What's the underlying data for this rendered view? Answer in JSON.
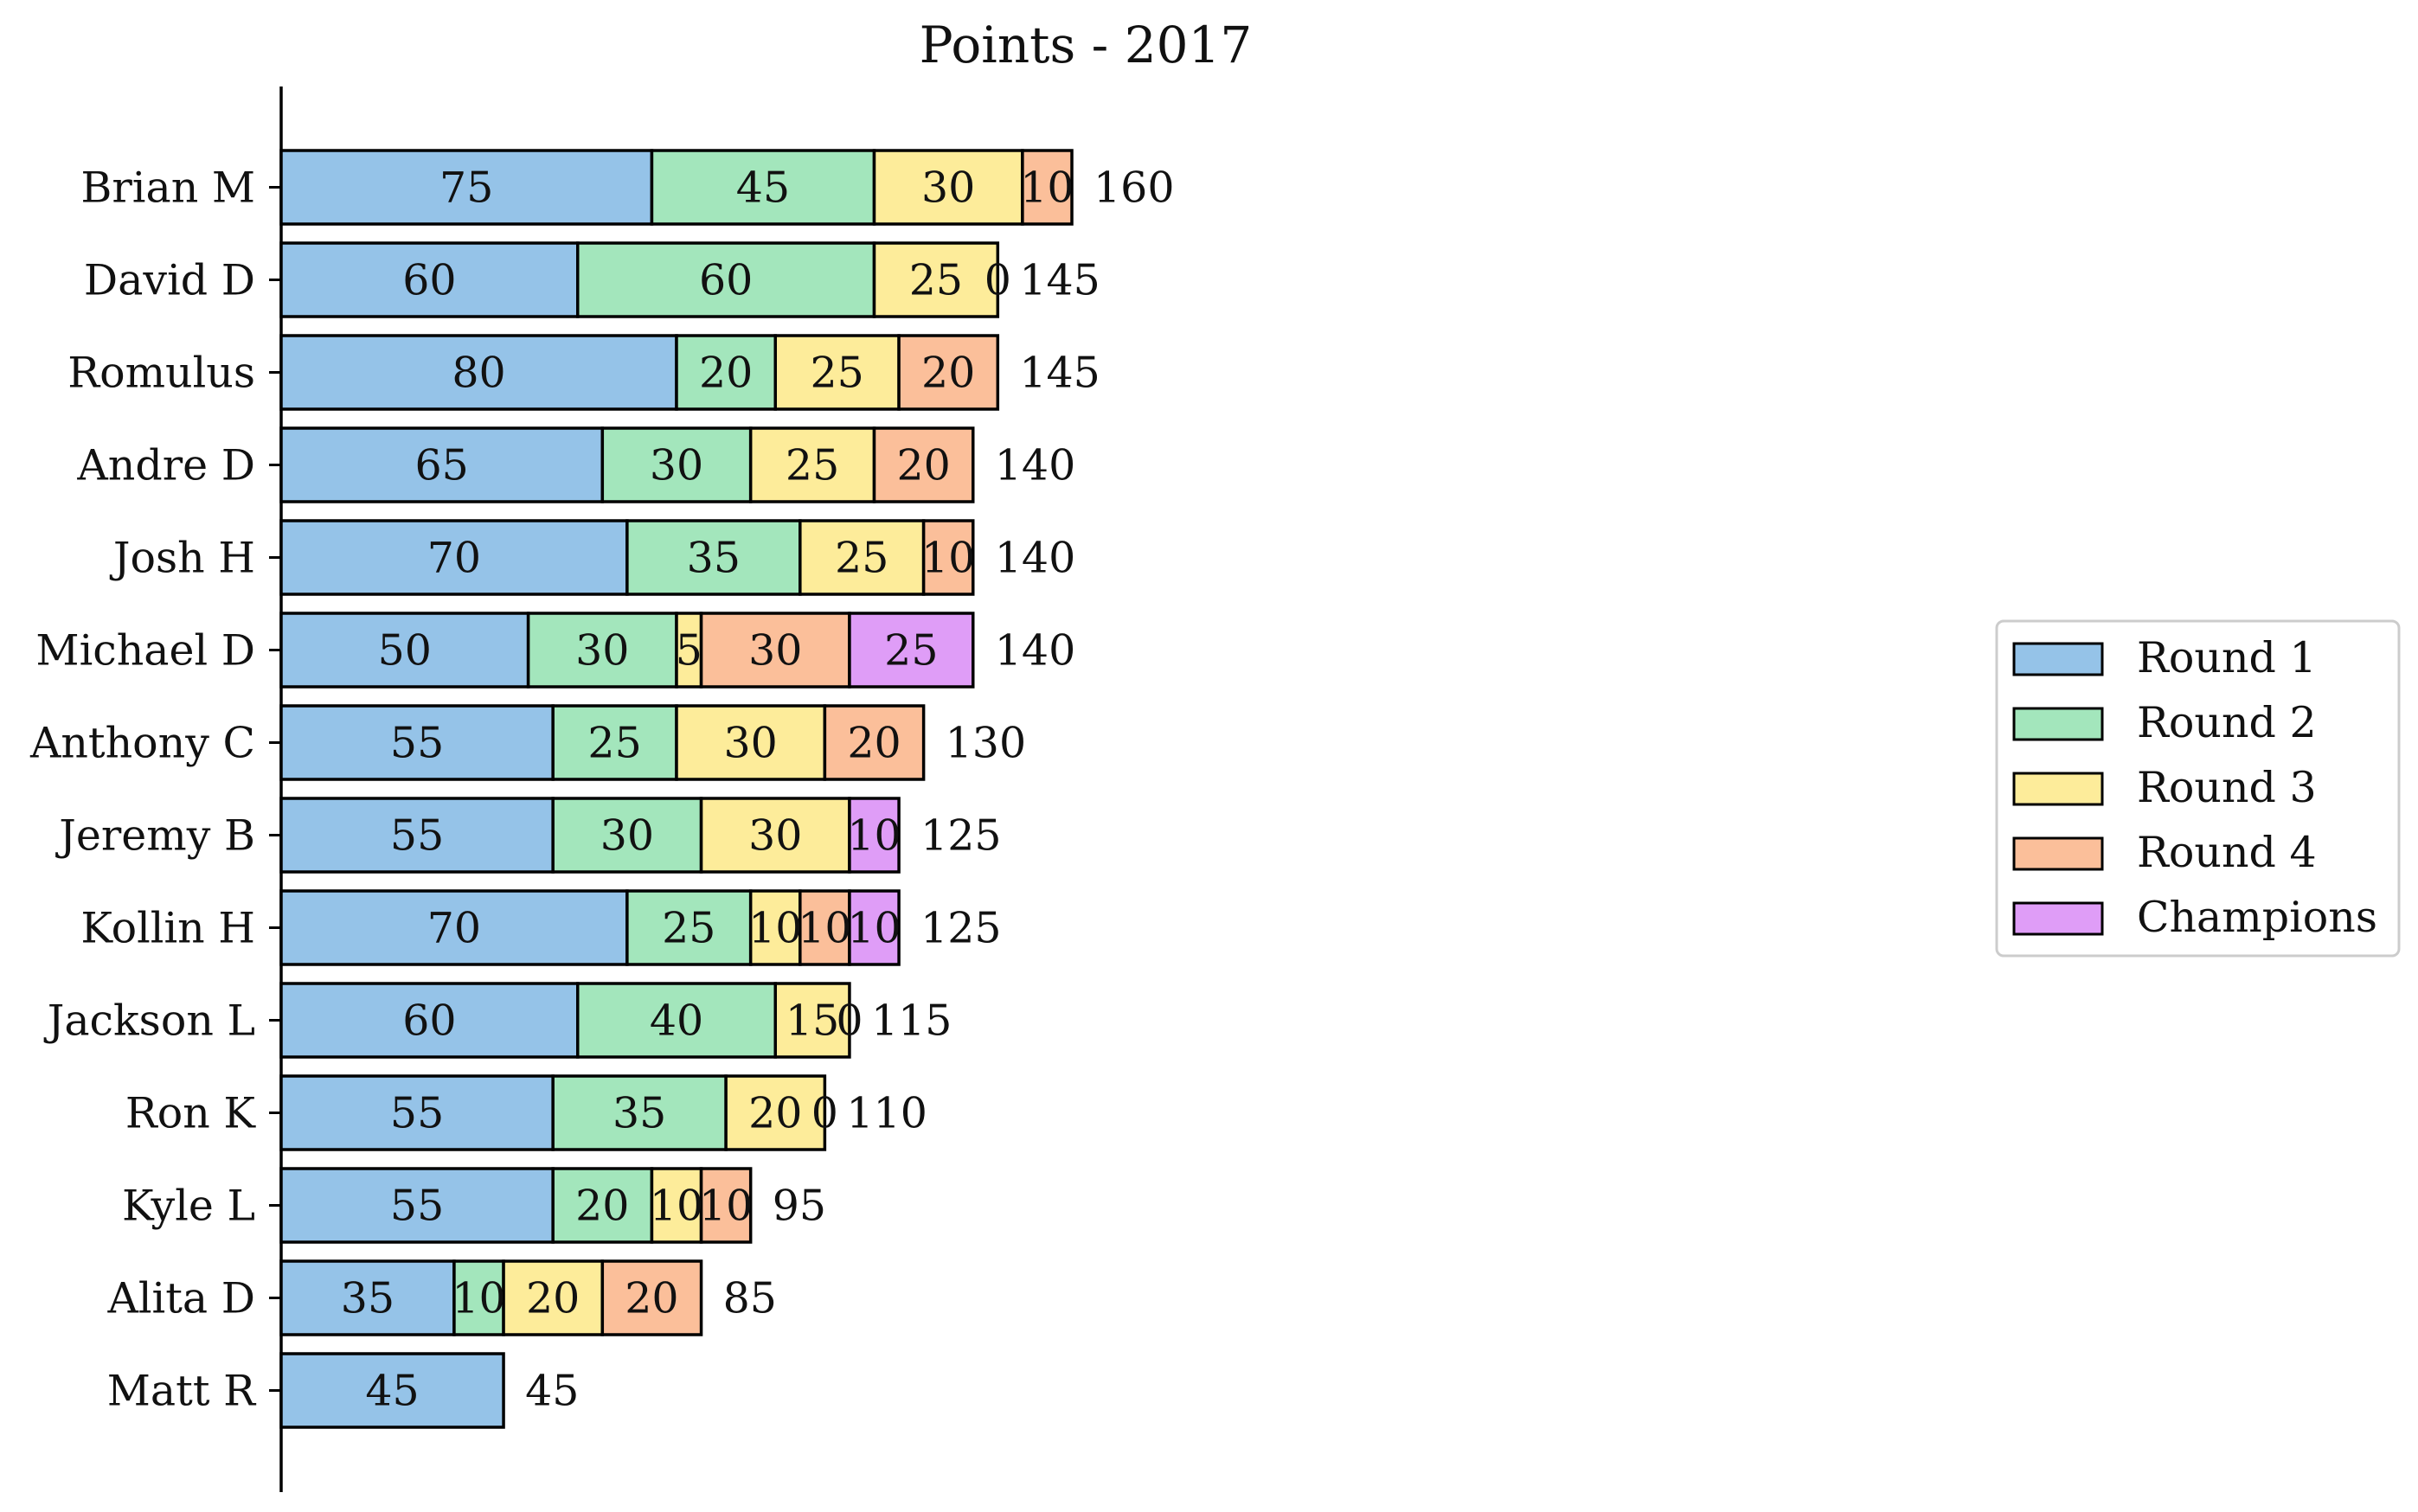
{
  "chart_data": {
    "type": "bar",
    "orientation": "horizontal",
    "stacked": true,
    "title": "Points - 2017",
    "xlabel": "",
    "ylabel": "",
    "grid": false,
    "legend_position": "center-right",
    "categories": [
      "Brian M",
      "David D",
      "Romulus",
      "Andre D",
      "Josh H",
      "Michael D",
      "Anthony C",
      "Jeremy B",
      "Kollin H",
      "Jackson L",
      "Ron K",
      "Kyle L",
      "Alita D",
      "Matt R"
    ],
    "series": [
      {
        "name": "Round 1",
        "color": "#95c3e8",
        "values": [
          75,
          60,
          80,
          65,
          70,
          50,
          55,
          55,
          70,
          60,
          55,
          55,
          35,
          45
        ]
      },
      {
        "name": "Round 2",
        "color": "#a3e6bc",
        "values": [
          45,
          60,
          20,
          30,
          35,
          30,
          25,
          30,
          25,
          40,
          35,
          20,
          10,
          0
        ]
      },
      {
        "name": "Round 3",
        "color": "#fdec9a",
        "values": [
          30,
          25,
          25,
          25,
          25,
          5,
          30,
          30,
          10,
          15,
          20,
          10,
          20,
          0
        ]
      },
      {
        "name": "Round 4",
        "color": "#fbbf9a",
        "values": [
          10,
          0,
          20,
          20,
          10,
          30,
          20,
          0,
          10,
          0,
          0,
          10,
          20,
          0
        ]
      },
      {
        "name": "Champions",
        "color": "#df9df7",
        "values": [
          0,
          0,
          0,
          0,
          0,
          25,
          0,
          10,
          10,
          0,
          0,
          0,
          0,
          0
        ]
      }
    ],
    "segment_labels": [
      [
        "75",
        "45",
        "30",
        "10",
        ""
      ],
      [
        "60",
        "60",
        "25",
        "0",
        ""
      ],
      [
        "80",
        "20",
        "25",
        "20",
        ""
      ],
      [
        "65",
        "30",
        "25",
        "20",
        ""
      ],
      [
        "70",
        "35",
        "25",
        "10",
        ""
      ],
      [
        "50",
        "30",
        "5",
        "30",
        "25"
      ],
      [
        "55",
        "25",
        "30",
        "20",
        ""
      ],
      [
        "55",
        "30",
        "30",
        "",
        "10"
      ],
      [
        "70",
        "25",
        "10",
        "10",
        "10"
      ],
      [
        "60",
        "40",
        "15",
        "0",
        ""
      ],
      [
        "55",
        "35",
        "20",
        "0",
        ""
      ],
      [
        "55",
        "20",
        "10",
        "10",
        ""
      ],
      [
        "35",
        "10",
        "20",
        "20",
        ""
      ],
      [
        "45",
        "",
        "",
        "",
        ""
      ]
    ],
    "totals": [
      160,
      145,
      145,
      140,
      140,
      140,
      130,
      125,
      125,
      115,
      110,
      95,
      85,
      45
    ],
    "xlim": [
      0,
      170
    ]
  }
}
